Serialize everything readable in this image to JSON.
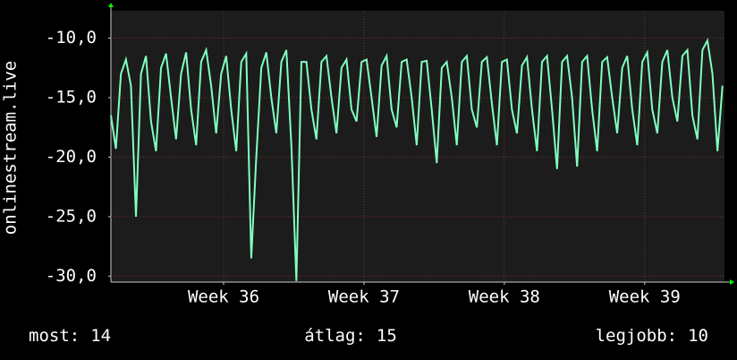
{
  "chart_data": {
    "type": "line",
    "y_label": "onlinestream.live",
    "x": [
      0,
      0.25,
      0.5,
      0.75,
      1,
      1.25,
      1.5,
      1.75,
      2,
      2.25,
      2.5,
      2.75,
      3,
      3.25,
      3.5,
      3.75,
      4,
      4.25,
      4.5,
      4.75,
      5,
      5.25,
      5.5,
      5.75,
      6,
      6.25,
      6.5,
      6.75,
      7,
      7.25,
      7.5,
      7.75,
      8,
      8.25,
      8.5,
      8.75,
      9,
      9.25,
      9.5,
      9.75,
      10,
      10.25,
      10.5,
      10.75,
      11,
      11.25,
      11.5,
      11.75,
      12,
      12.25,
      12.5,
      12.75,
      13,
      13.25,
      13.5,
      13.75,
      14,
      14.25,
      14.5,
      14.75,
      15,
      15.25,
      15.5,
      15.75,
      16,
      16.25,
      16.5,
      16.75,
      17,
      17.25,
      17.5,
      17.75,
      18,
      18.25,
      18.5,
      18.75,
      19,
      19.25,
      19.5,
      19.75,
      20,
      20.25,
      20.5,
      20.75,
      21,
      21.25,
      21.5,
      21.75,
      22,
      22.25,
      22.5,
      22.75,
      23,
      23.25,
      23.5,
      23.75,
      24,
      24.25,
      24.5,
      24.75,
      25,
      25.25,
      25.5,
      25.75,
      26,
      26.25,
      26.5,
      26.75,
      27,
      27.25,
      27.5,
      27.75,
      28,
      28.25,
      28.5,
      28.75,
      29,
      29.25,
      29.5,
      29.75,
      30,
      30.25,
      30.5
    ],
    "series": [
      {
        "name": "onlinestream.live",
        "color": "#80ffc0",
        "values": [
          -16.5,
          -19.3,
          -13,
          -11.8,
          -14,
          -25,
          -13,
          -11.5,
          -17,
          -19.5,
          -12.5,
          -11.3,
          -15,
          -18.5,
          -13,
          -11.2,
          -16,
          -19,
          -12,
          -11,
          -14,
          -18,
          -13,
          -11.5,
          -16,
          -19.5,
          -12,
          -11.3,
          -28.5,
          -20,
          -12.5,
          -11.2,
          -15,
          -18,
          -12,
          -11,
          -19,
          -30.4,
          -12,
          -12,
          -16,
          -18.5,
          -12,
          -11.5,
          -15,
          -18,
          -12.5,
          -11.8,
          -16,
          -17,
          -12,
          -11.8,
          -15,
          -18.3,
          -12.3,
          -11.5,
          -16,
          -17.5,
          -12,
          -11.8,
          -15,
          -19,
          -12,
          -11.9,
          -16,
          -20.5,
          -12.5,
          -12,
          -15,
          -19,
          -12,
          -11.5,
          -16,
          -17.5,
          -12,
          -11.6,
          -15.5,
          -19,
          -12,
          -11.8,
          -16,
          -18,
          -12.3,
          -11.6,
          -16,
          -19.5,
          -12,
          -11.5,
          -16,
          -21,
          -12,
          -11.5,
          -15,
          -20.8,
          -12,
          -11.5,
          -16,
          -19.5,
          -12,
          -11.6,
          -15,
          -18,
          -12.5,
          -11.5,
          -16,
          -19,
          -12,
          -11.2,
          -16,
          -18,
          -12,
          -11,
          -15,
          -17,
          -11.5,
          -11,
          -16.5,
          -18.5,
          -11,
          -10.2,
          -13,
          -19.5,
          -14
        ]
      }
    ],
    "xlim": [
      0,
      30.6
    ],
    "xticks": [
      {
        "value": 5.62,
        "label": "Week 36"
      },
      {
        "value": 12.62,
        "label": "Week 37"
      },
      {
        "value": 19.62,
        "label": "Week 38"
      },
      {
        "value": 26.62,
        "label": "Week 39"
      }
    ],
    "ylim": [
      -30.5,
      -7.7
    ],
    "yticks": [
      {
        "value": -10,
        "label": "-10,0"
      },
      {
        "value": -15,
        "label": "-15,0"
      },
      {
        "value": -20,
        "label": "-20,0"
      },
      {
        "value": -25,
        "label": "-25,0"
      },
      {
        "value": -30,
        "label": "-30,0"
      }
    ],
    "grid": true,
    "stats": [
      {
        "label": "most:",
        "value": 14
      },
      {
        "label": "átlag:",
        "value": 15
      },
      {
        "label": "legjobb:",
        "value": 10
      }
    ]
  }
}
